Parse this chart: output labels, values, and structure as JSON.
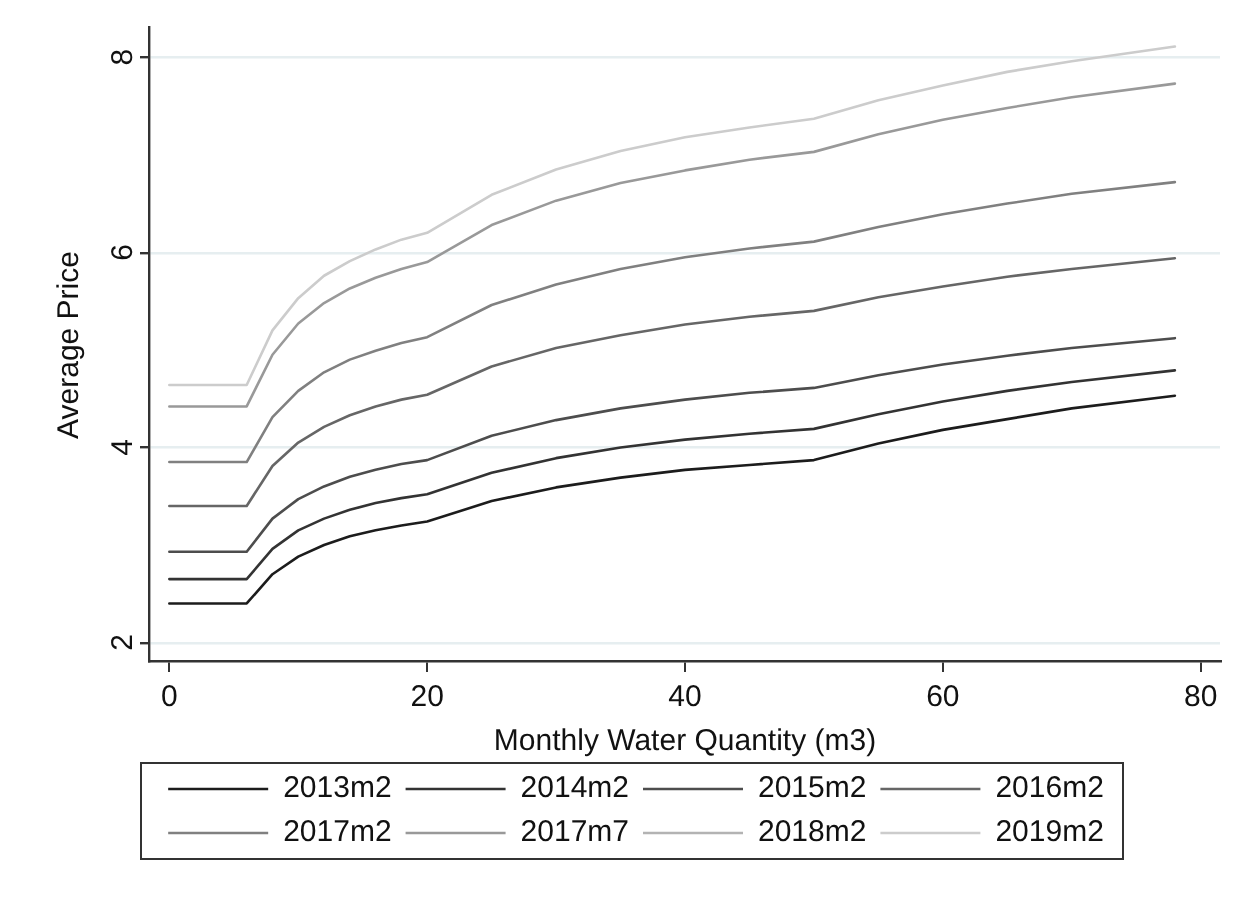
{
  "chart_data": {
    "type": "line",
    "xlabel": "Monthly Water Quantity (m3)",
    "ylabel": "Average Price",
    "x": [
      0,
      6,
      8,
      10,
      12,
      14,
      16,
      18,
      20,
      25,
      30,
      35,
      40,
      45,
      50,
      55,
      60,
      65,
      70,
      78
    ],
    "series": [
      {
        "name": "2013m2",
        "color": "#1c1c1c",
        "values": [
          2.4,
          2.4,
          2.7,
          2.88,
          3.0,
          3.09,
          3.15,
          3.2,
          3.24,
          3.45,
          3.59,
          3.69,
          3.77,
          3.82,
          3.87,
          4.04,
          4.18,
          4.29,
          4.4,
          4.53
        ]
      },
      {
        "name": "2014m2",
        "color": "#333333",
        "values": [
          2.65,
          2.65,
          2.96,
          3.15,
          3.27,
          3.36,
          3.43,
          3.48,
          3.52,
          3.74,
          3.89,
          4.0,
          4.08,
          4.14,
          4.19,
          4.34,
          4.47,
          4.58,
          4.67,
          4.79
        ]
      },
      {
        "name": "2015m2",
        "color": "#4d4d4d",
        "values": [
          2.93,
          2.93,
          3.27,
          3.47,
          3.6,
          3.7,
          3.77,
          3.83,
          3.87,
          4.12,
          4.28,
          4.4,
          4.49,
          4.56,
          4.61,
          4.74,
          4.85,
          4.94,
          5.02,
          5.12
        ]
      },
      {
        "name": "2016m2",
        "color": "#666666",
        "values": [
          3.4,
          3.4,
          3.81,
          4.05,
          4.21,
          4.33,
          4.42,
          4.49,
          4.54,
          4.83,
          5.02,
          5.15,
          5.26,
          5.34,
          5.4,
          5.54,
          5.65,
          5.75,
          5.83,
          5.94
        ]
      },
      {
        "name": "2017m2",
        "color": "#808080",
        "values": [
          3.85,
          3.85,
          4.31,
          4.58,
          4.77,
          4.9,
          4.99,
          5.07,
          5.13,
          5.46,
          5.67,
          5.83,
          5.95,
          6.04,
          6.11,
          6.26,
          6.39,
          6.5,
          6.6,
          6.72
        ]
      },
      {
        "name": "2017m7",
        "color": "#999999",
        "values": [
          4.42,
          4.42,
          4.95,
          5.27,
          5.48,
          5.63,
          5.74,
          5.83,
          5.9,
          6.28,
          6.53,
          6.71,
          6.84,
          6.95,
          7.03,
          7.21,
          7.36,
          7.48,
          7.59,
          7.73
        ]
      },
      {
        "name": "2018m2",
        "color": "#b3b3b3",
        "values": [
          null,
          null,
          null,
          null,
          null,
          null,
          null,
          null,
          null,
          null,
          null,
          null,
          null,
          null,
          null,
          null,
          null,
          null,
          null,
          null
        ]
      },
      {
        "name": "2019m2",
        "color": "#cccccc",
        "values": [
          4.64,
          4.64,
          5.2,
          5.53,
          5.76,
          5.91,
          6.03,
          6.13,
          6.2,
          6.59,
          6.85,
          7.04,
          7.18,
          7.28,
          7.37,
          7.56,
          7.71,
          7.85,
          7.96,
          8.11
        ]
      }
    ],
    "xlim": [
      -1.5,
      81.5
    ],
    "ylim": [
      1.8,
      8.3
    ],
    "xticks": [
      0,
      20,
      40,
      60,
      80
    ],
    "yticks": [
      2,
      4,
      6,
      8
    ],
    "grid": "y",
    "legend": "bottom",
    "marker": "none",
    "line_style": "solid"
  }
}
